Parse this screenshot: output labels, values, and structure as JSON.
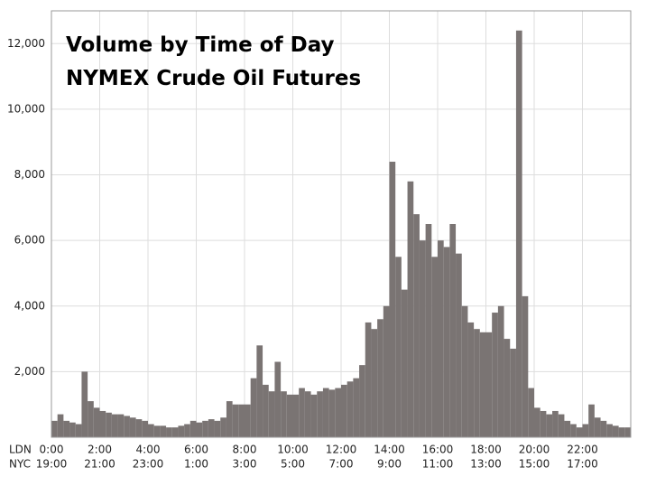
{
  "chart_data": {
    "type": "histogram",
    "title": "Volume by Time of Day",
    "subtitle": "NYMEX Crude Oil Futures",
    "bins": [
      0,
      0.25,
      0.5,
      0.75,
      1,
      1.25,
      1.5,
      1.75,
      2,
      2.25,
      2.5,
      2.75,
      3,
      3.25,
      3.5,
      3.75,
      4,
      4.25,
      4.5,
      4.75,
      5,
      5.25,
      5.5,
      5.75,
      6,
      6.25,
      6.5,
      6.75,
      7,
      7.25,
      7.5,
      7.75,
      8,
      8.25,
      8.5,
      8.75,
      9,
      9.25,
      9.5,
      9.75,
      10,
      10.25,
      10.5,
      10.75,
      11,
      11.25,
      11.5,
      11.75,
      12,
      12.25,
      12.5,
      12.75,
      13,
      13.25,
      13.5,
      13.75,
      14,
      14.25,
      14.5,
      14.75,
      15,
      15.25,
      15.5,
      15.75,
      16,
      16.25,
      16.5,
      16.75,
      17,
      17.25,
      17.5,
      17.75,
      18,
      18.25,
      18.5,
      18.75,
      19,
      19.25,
      19.5,
      19.75,
      20,
      20.25,
      20.5,
      20.75,
      21,
      21.25,
      21.5,
      21.75,
      22,
      22.25,
      22.5,
      22.75,
      23,
      23.25,
      23.5,
      23.75,
      24
    ],
    "values": [
      500,
      700,
      500,
      450,
      400,
      2000,
      1100,
      900,
      800,
      750,
      700,
      700,
      650,
      600,
      550,
      500,
      400,
      350,
      350,
      300,
      300,
      350,
      400,
      500,
      450,
      500,
      550,
      500,
      600,
      1100,
      1000,
      1000,
      1000,
      1800,
      2800,
      1600,
      1400,
      2300,
      1400,
      1300,
      1300,
      1500,
      1400,
      1300,
      1400,
      1500,
      1450,
      1500,
      1600,
      1700,
      1800,
      2200,
      3500,
      3300,
      3600,
      4000,
      8400,
      5500,
      4500,
      7800,
      6800,
      6000,
      6500,
      5500,
      6000,
      5800,
      6500,
      5600,
      4000,
      3500,
      3300,
      3200,
      3200,
      3800,
      4000,
      3000,
      2700,
      12400,
      4300,
      1500,
      900,
      800,
      700,
      800,
      700,
      500,
      400,
      300,
      400,
      1000,
      600,
      500,
      400,
      350,
      300,
      300
    ],
    "color": "#7a7473",
    "xlim": [
      0,
      24
    ],
    "xticks": [
      {
        "value": 0,
        "label": "0:00"
      },
      {
        "value": 2,
        "label": "2:00"
      },
      {
        "value": 4,
        "label": "4:00"
      },
      {
        "value": 6,
        "label": "6:00"
      },
      {
        "value": 8,
        "label": "8:00"
      },
      {
        "value": 10,
        "label": "10:00"
      },
      {
        "value": 12,
        "label": "12:00"
      },
      {
        "value": 14,
        "label": "14:00"
      },
      {
        "value": 16,
        "label": "16:00"
      },
      {
        "value": 18,
        "label": "18:00"
      },
      {
        "value": 20,
        "label": "20:00"
      },
      {
        "value": 22,
        "label": "22:00"
      }
    ],
    "x_row_labels": [
      "LDN",
      "NYC"
    ],
    "x_secondary_labels": [
      "19:00",
      "21:00",
      "23:00",
      "1:00",
      "3:00",
      "5:00",
      "7:00",
      "9:00",
      "11:00",
      "13:00",
      "15:00",
      "17:00"
    ],
    "ylim": [
      0,
      13000
    ],
    "yticks": [
      {
        "value": 2000,
        "label": "2,000"
      },
      {
        "value": 4000,
        "label": "4,000"
      },
      {
        "value": 6000,
        "label": "6,000"
      },
      {
        "value": 8000,
        "label": "8,000"
      },
      {
        "value": 10000,
        "label": "10,000"
      },
      {
        "value": 12000,
        "label": "12,000"
      }
    ],
    "grid": true
  }
}
